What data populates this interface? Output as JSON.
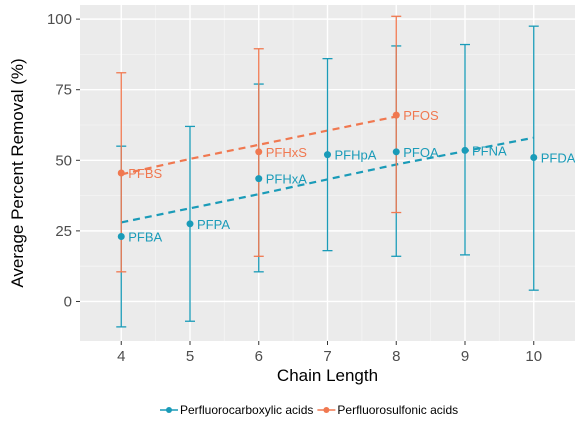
{
  "chart_data": {
    "type": "scatter",
    "xlabel": "Chain Length",
    "ylabel": "Average Percent Removal (%)",
    "xlim": [
      3.4,
      10.6
    ],
    "ylim": [
      -14,
      105
    ],
    "x_ticks": [
      4,
      5,
      6,
      7,
      8,
      9,
      10
    ],
    "y_ticks": [
      0,
      25,
      50,
      75,
      100
    ],
    "grid": true,
    "background": "#ebebeb",
    "legend_position": "bottom",
    "series": [
      {
        "name": "Perfluorocarboxylic acids",
        "color": "#1a9bb8",
        "points": [
          {
            "x": 4,
            "y": 23,
            "ymin": -9,
            "ymax": 55,
            "label": "PFBA"
          },
          {
            "x": 5,
            "y": 27.5,
            "ymin": -7,
            "ymax": 62,
            "label": "PFPA"
          },
          {
            "x": 6,
            "y": 43.5,
            "ymin": 10.5,
            "ymax": 77,
            "label": "PFHxA"
          },
          {
            "x": 7,
            "y": 52,
            "ymin": 18,
            "ymax": 86,
            "label": "PFHpA"
          },
          {
            "x": 8,
            "y": 53,
            "ymin": 16,
            "ymax": 90.5,
            "label": "PFOA"
          },
          {
            "x": 9,
            "y": 53.5,
            "ymin": 16.5,
            "ymax": 91,
            "label": "PFNA"
          },
          {
            "x": 10,
            "y": 51,
            "ymin": 4,
            "ymax": 97.5,
            "label": "PFDA"
          }
        ],
        "trend": [
          {
            "x": 4,
            "y": 28
          },
          {
            "x": 6,
            "y": 38
          },
          {
            "x": 8,
            "y": 48.5
          },
          {
            "x": 10,
            "y": 58
          }
        ]
      },
      {
        "name": "Perfluorosulfonic acids",
        "color": "#f07850",
        "points": [
          {
            "x": 4,
            "y": 45.5,
            "ymin": 10.5,
            "ymax": 81,
            "label": "PFBS"
          },
          {
            "x": 6,
            "y": 53,
            "ymin": 16,
            "ymax": 89.5,
            "label": "PFHxS"
          },
          {
            "x": 8,
            "y": 66,
            "ymin": 31.5,
            "ymax": 101,
            "label": "PFOS"
          }
        ],
        "trend": [
          {
            "x": 4,
            "y": 45
          },
          {
            "x": 5,
            "y": 50.5
          },
          {
            "x": 6,
            "y": 55.5
          },
          {
            "x": 7,
            "y": 60.5
          },
          {
            "x": 8,
            "y": 65.5
          }
        ]
      }
    ]
  }
}
